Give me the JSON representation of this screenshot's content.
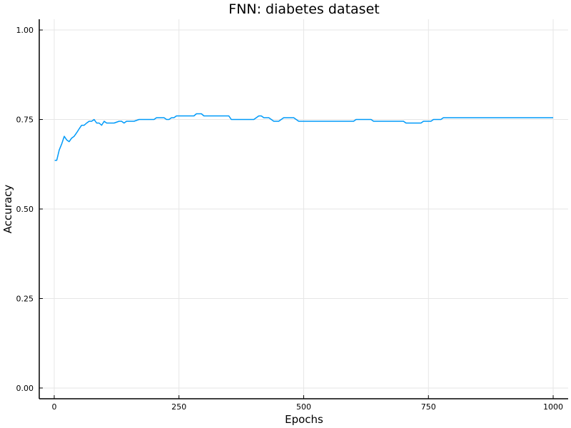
{
  "chart_data": {
    "type": "line",
    "title": "FNN: diabetes dataset",
    "xlabel": "Epochs",
    "ylabel": "Accuracy",
    "xlim": [
      -30,
      1030
    ],
    "ylim": [
      -0.03,
      1.03
    ],
    "xticks": [
      0,
      250,
      500,
      750,
      1000
    ],
    "xtick_labels": [
      "0",
      "250",
      "500",
      "750",
      "1000"
    ],
    "yticks": [
      0.0,
      0.25,
      0.5,
      0.75,
      1.0
    ],
    "ytick_labels": [
      "0.00",
      "0.25",
      "0.50",
      "0.75",
      "1.00"
    ],
    "grid": true,
    "legend": "none",
    "series": [
      {
        "color": "#009af9",
        "x": [
          1,
          5,
          10,
          15,
          20,
          25,
          30,
          35,
          40,
          45,
          50,
          55,
          60,
          65,
          70,
          75,
          80,
          85,
          90,
          95,
          100,
          105,
          110,
          120,
          130,
          135,
          140,
          145,
          150,
          160,
          170,
          175,
          190,
          200,
          205,
          210,
          215,
          220,
          225,
          230,
          235,
          240,
          245,
          250,
          260,
          270,
          280,
          285,
          290,
          295,
          300,
          310,
          320,
          330,
          340,
          350,
          355,
          360,
          370,
          380,
          390,
          400,
          405,
          410,
          415,
          420,
          425,
          430,
          440,
          445,
          450,
          460,
          465,
          470,
          475,
          480,
          490,
          495,
          500,
          510,
          520,
          530,
          540,
          550,
          560,
          570,
          580,
          590,
          600,
          605,
          610,
          620,
          630,
          635,
          640,
          650,
          660,
          670,
          680,
          690,
          700,
          705,
          710,
          720,
          730,
          735,
          740,
          745,
          750,
          755,
          760,
          770,
          775,
          780,
          790,
          800,
          850,
          900,
          950,
          1000
        ],
        "y": [
          0.636,
          0.636,
          0.665,
          0.682,
          0.703,
          0.693,
          0.688,
          0.698,
          0.703,
          0.713,
          0.724,
          0.734,
          0.734,
          0.74,
          0.745,
          0.745,
          0.75,
          0.74,
          0.74,
          0.734,
          0.745,
          0.74,
          0.74,
          0.74,
          0.745,
          0.745,
          0.74,
          0.745,
          0.745,
          0.745,
          0.75,
          0.75,
          0.75,
          0.75,
          0.755,
          0.755,
          0.755,
          0.755,
          0.75,
          0.75,
          0.755,
          0.755,
          0.76,
          0.76,
          0.76,
          0.76,
          0.76,
          0.766,
          0.766,
          0.766,
          0.76,
          0.76,
          0.76,
          0.76,
          0.76,
          0.76,
          0.75,
          0.75,
          0.75,
          0.75,
          0.75,
          0.75,
          0.755,
          0.76,
          0.76,
          0.755,
          0.755,
          0.755,
          0.745,
          0.745,
          0.745,
          0.755,
          0.755,
          0.755,
          0.755,
          0.755,
          0.745,
          0.745,
          0.745,
          0.745,
          0.745,
          0.745,
          0.745,
          0.745,
          0.745,
          0.745,
          0.745,
          0.745,
          0.745,
          0.75,
          0.75,
          0.75,
          0.75,
          0.75,
          0.745,
          0.745,
          0.745,
          0.745,
          0.745,
          0.745,
          0.745,
          0.74,
          0.74,
          0.74,
          0.74,
          0.74,
          0.745,
          0.745,
          0.745,
          0.745,
          0.75,
          0.75,
          0.75,
          0.755,
          0.755,
          0.755,
          0.755,
          0.755,
          0.755,
          0.755
        ]
      }
    ]
  }
}
